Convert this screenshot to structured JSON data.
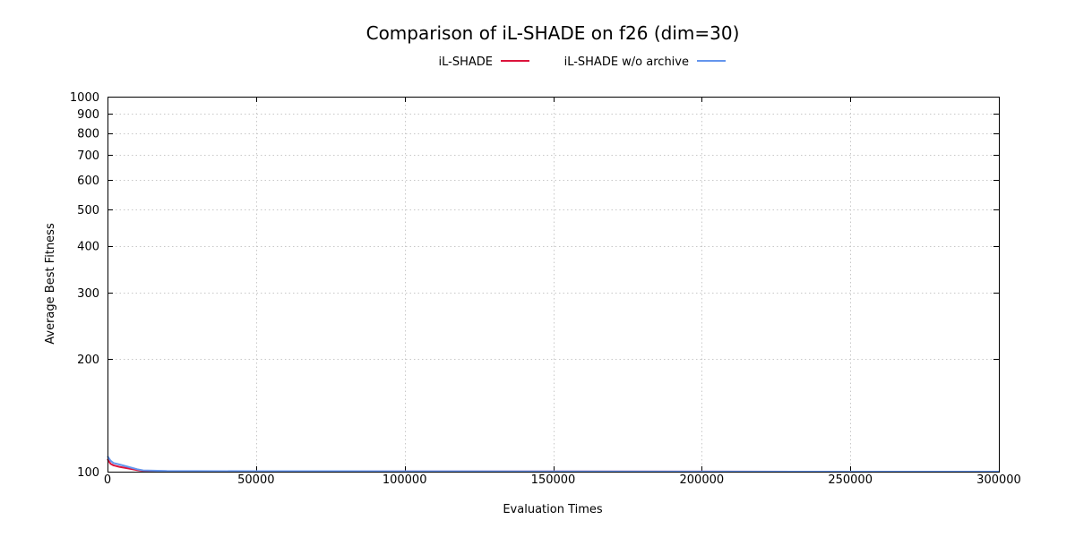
{
  "chart_data": {
    "type": "line",
    "title": "Comparison of iL-SHADE on f26 (dim=30)",
    "xlabel": "Evaluation Times",
    "ylabel": "Average Best Fitness",
    "xlim": [
      0,
      300000
    ],
    "ylim": [
      100,
      1000
    ],
    "yscale": "log",
    "grid": true,
    "legend_position": "top",
    "x_ticks": [
      0,
      50000,
      100000,
      150000,
      200000,
      250000,
      300000
    ],
    "y_ticks": [
      100,
      200,
      300,
      400,
      500,
      600,
      700,
      800,
      900,
      1000
    ],
    "series": [
      {
        "name": "iL-SHADE",
        "color": "#dc143c",
        "x": [
          0,
          1000,
          2000,
          4000,
          7000,
          10000,
          12000,
          20000,
          50000,
          100000,
          150000,
          200000,
          250000,
          300000
        ],
        "y": [
          108,
          105,
          104,
          103,
          102,
          101,
          100.5,
          100.3,
          100.2,
          100.1,
          100.1,
          100.05,
          100.02,
          100
        ]
      },
      {
        "name": "iL-SHADE w/o archive",
        "color": "#6495ed",
        "x": [
          0,
          1000,
          2000,
          4000,
          7000,
          10000,
          12000,
          20000,
          50000,
          100000,
          150000,
          200000,
          250000,
          300000
        ],
        "y": [
          110,
          107,
          105.5,
          104.5,
          103,
          101.5,
          100.8,
          100.4,
          100.3,
          100.2,
          100.1,
          100.05,
          100.02,
          100
        ]
      }
    ]
  }
}
